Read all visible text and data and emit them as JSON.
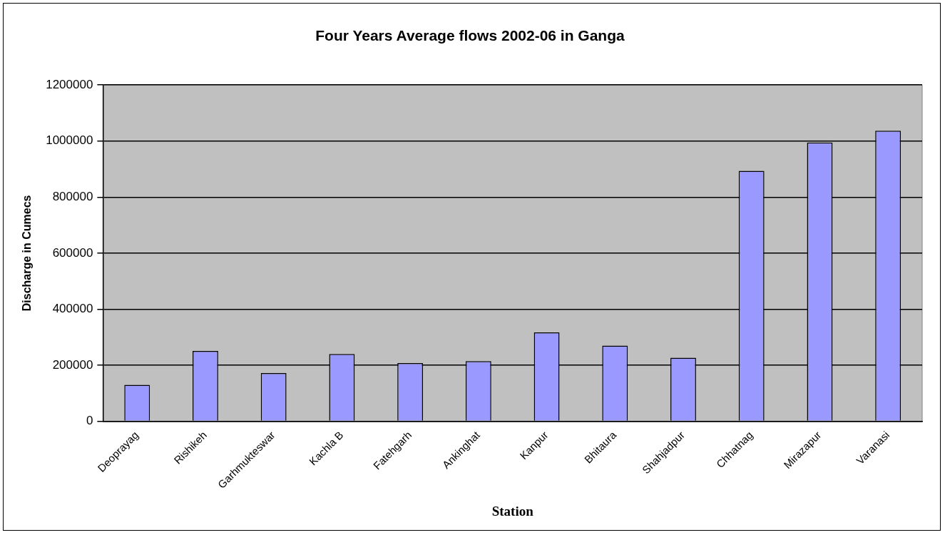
{
  "chart_data": {
    "type": "bar",
    "title": "Four Years Average flows 2002-06 in Ganga",
    "xlabel": "Station",
    "ylabel": "Discharge in Cumecs",
    "categories": [
      "Deoprayag",
      "Rishikeh",
      "Garhmukteswar",
      "Kachla B",
      "Fatehgarh",
      "Ankinghat",
      "Kanpur",
      "Bhitaura",
      "Shahjadpur",
      "Chhatnag",
      "Mirazapur",
      "Varanasi"
    ],
    "values": [
      130000,
      251000,
      172000,
      240000,
      208000,
      215000,
      317000,
      270000,
      227000,
      894000,
      995000,
      1037000
    ],
    "color": "#9999ff",
    "ylim": [
      0,
      1200000
    ],
    "yticks": [
      0,
      200000,
      400000,
      600000,
      800000,
      1000000,
      1200000
    ],
    "grid": "y",
    "legend": false
  }
}
